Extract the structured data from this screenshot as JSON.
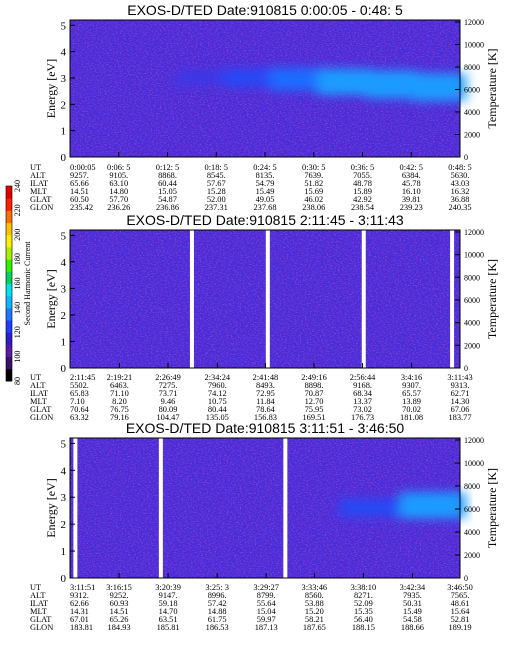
{
  "colorbar": {
    "label": "Second Harmonic Current",
    "ticks": [
      "80",
      "100",
      "120",
      "140",
      "160",
      "180",
      "200",
      "220",
      "240"
    ]
  },
  "panels": [
    {
      "title": "EXOS-D/TED   Date:910815  0:00:05 - 0:48: 5",
      "ylabel_left": "Energy [eV]",
      "ylabel_right": "Temperature [K]",
      "yticks_left": [
        "0",
        "1",
        "2",
        "3",
        "4",
        "5"
      ],
      "yticks_right": [
        "0",
        "2000",
        "4000",
        "6000",
        "8000",
        "10000",
        "12000"
      ],
      "orbit_row_labels": [
        "UT",
        "ALT",
        "ILAT",
        "MLT",
        "GLAT",
        "GLON"
      ],
      "orbit_columns": [
        [
          "0:00:05",
          "9257.",
          "65.66",
          "14.51",
          "60.50",
          "235.42"
        ],
        [
          "0:06: 5",
          "9105.",
          "63.10",
          "14.80",
          "57.70",
          "236.26"
        ],
        [
          "0:12: 5",
          "8868.",
          "60.44",
          "15.05",
          "54.87",
          "236.86"
        ],
        [
          "0:18: 5",
          "8545.",
          "57.67",
          "15.28",
          "52.00",
          "237.31"
        ],
        [
          "0:24: 5",
          "8135.",
          "54.79",
          "15.49",
          "49.05",
          "237.68"
        ],
        [
          "0:30: 5",
          "7639.",
          "51.82",
          "15.69",
          "46.02",
          "238.06"
        ],
        [
          "0:36: 5",
          "7055.",
          "48.78",
          "15.89",
          "42.92",
          "238.54"
        ],
        [
          "0:42: 5",
          "6384.",
          "45.78",
          "16.10",
          "39.81",
          "239.23"
        ],
        [
          "0:48: 5",
          "5630.",
          "43.03",
          "16.32",
          "36.88",
          "240.35"
        ]
      ]
    },
    {
      "title": "EXOS-D/TED   Date:910815  2:11:45 - 3:11:43",
      "ylabel_left": "Energy [eV]",
      "ylabel_right": "Temperature [K]",
      "yticks_left": [
        "0",
        "1",
        "2",
        "3",
        "4",
        "5"
      ],
      "yticks_right": [
        "0",
        "2000",
        "4000",
        "6000",
        "8000",
        "10000",
        "12000"
      ],
      "orbit_row_labels": [
        "UT",
        "ALT",
        "ILAT",
        "MLT",
        "GLAT",
        "GLON"
      ],
      "orbit_columns": [
        [
          "2:11:45",
          "5502.",
          "65.83",
          "7.10",
          "70.64",
          "63.32"
        ],
        [
          "2:19:21",
          "6463.",
          "71.10",
          "8.20",
          "76.75",
          "79.16"
        ],
        [
          "2:26:49",
          "7275.",
          "73.71",
          "9.46",
          "80.09",
          "104.47"
        ],
        [
          "2:34:24",
          "7960.",
          "74.12",
          "10.75",
          "80.44",
          "135.05"
        ],
        [
          "2:41:48",
          "8493.",
          "72.95",
          "11.84",
          "78.64",
          "156.83"
        ],
        [
          "2:49:16",
          "8898.",
          "70.87",
          "12.70",
          "75.95",
          "169.51"
        ],
        [
          "2:56:44",
          "9168.",
          "68.34",
          "13.37",
          "73.02",
          "176.73"
        ],
        [
          "3:4:16",
          "9307.",
          "65.57",
          "13.89",
          "70.02",
          "181.08"
        ],
        [
          "3:11:43",
          "9313.",
          "62.71",
          "14.30",
          "67.06",
          "183.77"
        ]
      ]
    },
    {
      "title": "EXOS-D/TED   Date:910815  3:11:51 - 3:46:50",
      "ylabel_left": "Energy [eV]",
      "ylabel_right": "Temperature [K]",
      "yticks_left": [
        "0",
        "1",
        "2",
        "3",
        "4",
        "5"
      ],
      "yticks_right": [
        "0",
        "2000",
        "4000",
        "6000",
        "8000",
        "10000",
        "12000"
      ],
      "orbit_row_labels": [
        "UT",
        "ALT",
        "ILAT",
        "MLT",
        "GLAT",
        "GLON"
      ],
      "orbit_columns": [
        [
          "3:11:51",
          "9312.",
          "62.66",
          "14.31",
          "67.01",
          "183.81"
        ],
        [
          "3:16:15",
          "9252.",
          "60.93",
          "14.51",
          "65.26",
          "184.93"
        ],
        [
          "3:20:39",
          "9147.",
          "59.18",
          "14.70",
          "63.51",
          "185.81"
        ],
        [
          "3:25: 3",
          "8996.",
          "57.42",
          "14.88",
          "61.75",
          "186.53"
        ],
        [
          "3:29:27",
          "8799.",
          "55.64",
          "15.04",
          "59.97",
          "187.13"
        ],
        [
          "3:33:46",
          "8560.",
          "53.88",
          "15.20",
          "58.21",
          "187.65"
        ],
        [
          "3:38:10",
          "8271.",
          "52.09",
          "15.35",
          "56.40",
          "188.15"
        ],
        [
          "3:42:34",
          "7935.",
          "50.31",
          "15.49",
          "54.58",
          "188.66"
        ],
        [
          "3:46:50",
          "7565.",
          "48.61",
          "15.64",
          "52.81",
          "189.19"
        ]
      ]
    }
  ],
  "chart_data": [
    {
      "type": "heatmap",
      "title": "EXOS-D/TED   Date:910815  0:00:05 - 0:48: 5",
      "xlabel": "UT",
      "ylabel": "Energy [eV]",
      "ylabel_right": "Temperature [K]",
      "ylim": [
        0,
        5.2
      ],
      "ylim_right": [
        0,
        12000
      ],
      "x": [
        "0:00:05",
        "0:06: 5",
        "0:12: 5",
        "0:18: 5",
        "0:24: 5",
        "0:30: 5",
        "0:36: 5",
        "0:42: 5",
        "0:48: 5"
      ],
      "colorscale": {
        "label": "Second Harmonic Current",
        "range": [
          80,
          240
        ]
      },
      "features": [
        {
          "desc": "enhanced band",
          "ut_start": "0:13:00",
          "ut_end": "0:48:05",
          "energy_center_ev": [
            3.0,
            3.0,
            2.95,
            2.85,
            2.75,
            2.65
          ],
          "intensity": [
            100,
            110,
            125,
            135,
            140,
            140
          ]
        }
      ]
    },
    {
      "type": "heatmap",
      "title": "EXOS-D/TED   Date:910815  2:11:45 - 3:11:43",
      "xlabel": "UT",
      "ylabel": "Energy [eV]",
      "ylabel_right": "Temperature [K]",
      "ylim": [
        0,
        5.2
      ],
      "ylim_right": [
        0,
        12000
      ],
      "x": [
        "2:11:45",
        "2:19:21",
        "2:26:49",
        "2:34:24",
        "2:41:48",
        "2:49:16",
        "2:56:44",
        "3:4:16",
        "3:11:43"
      ],
      "colorscale": {
        "label": "Second Harmonic Current",
        "range": [
          80,
          240
        ]
      },
      "data_gaps_ut": [
        "2:30:30",
        "2:42:10",
        "2:56:55",
        "3:10:30"
      ]
    },
    {
      "type": "heatmap",
      "title": "EXOS-D/TED   Date:910815  3:11:51 - 3:46:50",
      "xlabel": "UT",
      "ylabel": "Energy [eV]",
      "ylabel_right": "Temperature [K]",
      "ylim": [
        0,
        5.2
      ],
      "ylim_right": [
        0,
        12000
      ],
      "x": [
        "3:11:51",
        "3:16:15",
        "3:20:39",
        "3:25: 3",
        "3:29:27",
        "3:33:46",
        "3:38:10",
        "3:42:34",
        "3:46:50"
      ],
      "colorscale": {
        "label": "Second Harmonic Current",
        "range": [
          80,
          240
        ]
      },
      "data_gaps_ut": [
        "3:12:20",
        "3:20:00",
        "3:31:10"
      ],
      "features": [
        {
          "desc": "enhanced band",
          "ut_start": "3:36:00",
          "ut_end": "3:46:50",
          "energy_center_ev": [
            2.6,
            2.7
          ],
          "intensity": [
            110,
            135
          ]
        }
      ]
    }
  ]
}
